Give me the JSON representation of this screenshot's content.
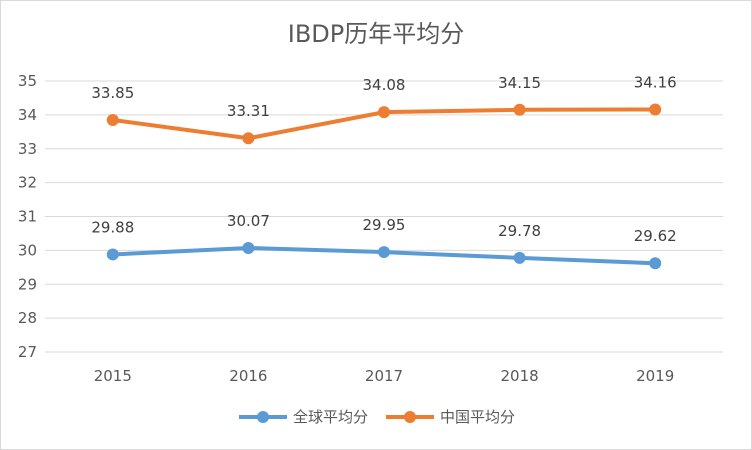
{
  "chart_data": {
    "type": "line",
    "title": "IBDP历年平均分",
    "categories": [
      "2015",
      "2016",
      "2017",
      "2018",
      "2019"
    ],
    "series": [
      {
        "name": "全球平均分",
        "values": [
          29.88,
          30.07,
          29.95,
          29.78,
          29.62
        ],
        "color": "#5b9bd5"
      },
      {
        "name": "中国平均分",
        "values": [
          33.85,
          33.31,
          34.08,
          34.15,
          34.16
        ],
        "color": "#ed7d31"
      }
    ],
    "ylim": [
      27,
      35
    ],
    "yticks": [
      "27",
      "28",
      "29",
      "30",
      "31",
      "32",
      "33",
      "34",
      "35"
    ],
    "grid": true,
    "legend_position": "bottom"
  }
}
